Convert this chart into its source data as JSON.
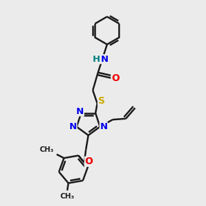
{
  "bg_color": "#ebebeb",
  "bond_color": "#1a1a1a",
  "bond_width": 1.8,
  "atom_colors": {
    "N": "#0000ee",
    "O": "#ee0000",
    "S": "#ccaa00",
    "H": "#008080",
    "C": "#1a1a1a"
  },
  "font_size": 9.5,
  "fig_width": 3.0,
  "fig_height": 3.0,
  "dpi": 100
}
